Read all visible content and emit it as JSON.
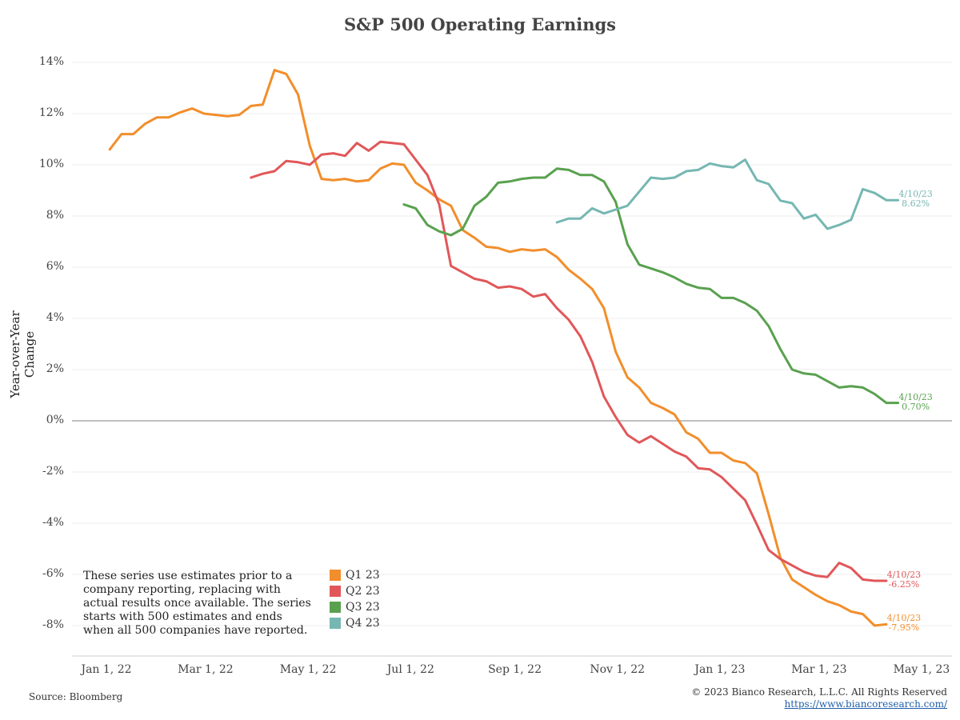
{
  "chart_data": {
    "type": "line",
    "title": "S&P 500 Operating Earnings",
    "ylabel": "Year-over-Year Change",
    "xlabel": "",
    "ylim": [
      -9,
      14.5
    ],
    "xlim": [
      "2021-12-20",
      "2023-05-10"
    ],
    "grid": true,
    "yticks": [
      "14%",
      "12%",
      "10%",
      "8%",
      "6%",
      "4%",
      "2%",
      "0%",
      "-2%",
      "-4%",
      "-6%",
      "-8%"
    ],
    "ytick_values": [
      14,
      12,
      10,
      8,
      6,
      4,
      2,
      0,
      -2,
      -4,
      -6,
      -8
    ],
    "xticks": [
      {
        "date": "2022-01-01",
        "label": "Jan 1, 22"
      },
      {
        "date": "2022-03-01",
        "label": "Mar 1, 22"
      },
      {
        "date": "2022-05-01",
        "label": "May 1, 22"
      },
      {
        "date": "2022-07-01",
        "label": "Jul 1, 22"
      },
      {
        "date": "2022-09-01",
        "label": "Sep 1, 22"
      },
      {
        "date": "2022-11-01",
        "label": "Nov 1, 22"
      },
      {
        "date": "2023-01-01",
        "label": "Jan 1, 23"
      },
      {
        "date": "2023-03-01",
        "label": "Mar 1, 23"
      },
      {
        "date": "2023-05-01",
        "label": "May 1, 23"
      }
    ],
    "legend_position": "bottom-left",
    "series": [
      {
        "name": "Q1 23",
        "color": "#f28e2b",
        "end_label_date": "4/10/23",
        "end_label_value": "-7.95%",
        "points": [
          [
            "2022-01-03",
            10.6
          ],
          [
            "2022-01-10",
            11.2
          ],
          [
            "2022-01-17",
            11.2
          ],
          [
            "2022-01-24",
            11.6
          ],
          [
            "2022-01-31",
            11.85
          ],
          [
            "2022-02-07",
            11.85
          ],
          [
            "2022-02-14",
            12.05
          ],
          [
            "2022-02-21",
            12.2
          ],
          [
            "2022-02-28",
            12.0
          ],
          [
            "2022-03-07",
            11.95
          ],
          [
            "2022-03-14",
            11.9
          ],
          [
            "2022-03-21",
            11.95
          ],
          [
            "2022-03-28",
            12.3
          ],
          [
            "2022-04-04",
            12.35
          ],
          [
            "2022-04-11",
            13.7
          ],
          [
            "2022-04-18",
            13.55
          ],
          [
            "2022-04-25",
            12.75
          ],
          [
            "2022-05-02",
            10.75
          ],
          [
            "2022-05-09",
            9.45
          ],
          [
            "2022-05-16",
            9.4
          ],
          [
            "2022-05-23",
            9.45
          ],
          [
            "2022-05-30",
            9.35
          ],
          [
            "2022-06-06",
            9.4
          ],
          [
            "2022-06-13",
            9.85
          ],
          [
            "2022-06-20",
            10.05
          ],
          [
            "2022-06-27",
            10.0
          ],
          [
            "2022-07-04",
            9.3
          ],
          [
            "2022-07-11",
            9.0
          ],
          [
            "2022-07-18",
            8.65
          ],
          [
            "2022-07-25",
            8.4
          ],
          [
            "2022-08-01",
            7.45
          ],
          [
            "2022-08-08",
            7.15
          ],
          [
            "2022-08-15",
            6.8
          ],
          [
            "2022-08-22",
            6.75
          ],
          [
            "2022-08-29",
            6.6
          ],
          [
            "2022-09-05",
            6.7
          ],
          [
            "2022-09-12",
            6.65
          ],
          [
            "2022-09-19",
            6.7
          ],
          [
            "2022-09-26",
            6.4
          ],
          [
            "2022-10-03",
            5.9
          ],
          [
            "2022-10-10",
            5.55
          ],
          [
            "2022-10-17",
            5.15
          ],
          [
            "2022-10-24",
            4.4
          ],
          [
            "2022-10-31",
            2.7
          ],
          [
            "2022-11-07",
            1.7
          ],
          [
            "2022-11-14",
            1.3
          ],
          [
            "2022-11-21",
            0.7
          ],
          [
            "2022-11-28",
            0.5
          ],
          [
            "2022-12-05",
            0.25
          ],
          [
            "2022-12-12",
            -0.45
          ],
          [
            "2022-12-19",
            -0.7
          ],
          [
            "2022-12-26",
            -1.25
          ],
          [
            "2023-01-02",
            -1.25
          ],
          [
            "2023-01-09",
            -1.55
          ],
          [
            "2023-01-16",
            -1.65
          ],
          [
            "2023-01-23",
            -2.05
          ],
          [
            "2023-01-30",
            -3.65
          ],
          [
            "2023-02-06",
            -5.35
          ],
          [
            "2023-02-13",
            -6.2
          ],
          [
            "2023-02-20",
            -6.5
          ],
          [
            "2023-02-27",
            -6.8
          ],
          [
            "2023-03-06",
            -7.05
          ],
          [
            "2023-03-13",
            -7.2
          ],
          [
            "2023-03-20",
            -7.45
          ],
          [
            "2023-03-27",
            -7.55
          ],
          [
            "2023-04-03",
            -8.0
          ],
          [
            "2023-04-10",
            -7.95
          ]
        ]
      },
      {
        "name": "Q2 23",
        "color": "#e15759",
        "end_label_date": "4/10/23",
        "end_label_value": "-6.25%",
        "points": [
          [
            "2022-03-28",
            9.5
          ],
          [
            "2022-04-04",
            9.65
          ],
          [
            "2022-04-11",
            9.75
          ],
          [
            "2022-04-18",
            10.15
          ],
          [
            "2022-04-25",
            10.1
          ],
          [
            "2022-05-02",
            10.0
          ],
          [
            "2022-05-09",
            10.4
          ],
          [
            "2022-05-16",
            10.45
          ],
          [
            "2022-05-23",
            10.35
          ],
          [
            "2022-05-30",
            10.85
          ],
          [
            "2022-06-06",
            10.55
          ],
          [
            "2022-06-13",
            10.9
          ],
          [
            "2022-06-20",
            10.85
          ],
          [
            "2022-06-27",
            10.8
          ],
          [
            "2022-07-04",
            10.2
          ],
          [
            "2022-07-11",
            9.6
          ],
          [
            "2022-07-18",
            8.45
          ],
          [
            "2022-07-25",
            6.05
          ],
          [
            "2022-08-01",
            5.8
          ],
          [
            "2022-08-08",
            5.55
          ],
          [
            "2022-08-15",
            5.45
          ],
          [
            "2022-08-22",
            5.2
          ],
          [
            "2022-08-29",
            5.25
          ],
          [
            "2022-09-05",
            5.15
          ],
          [
            "2022-09-12",
            4.85
          ],
          [
            "2022-09-19",
            4.95
          ],
          [
            "2022-09-26",
            4.4
          ],
          [
            "2022-10-03",
            3.95
          ],
          [
            "2022-10-10",
            3.3
          ],
          [
            "2022-10-17",
            2.3
          ],
          [
            "2022-10-24",
            0.95
          ],
          [
            "2022-10-31",
            0.15
          ],
          [
            "2022-11-07",
            -0.55
          ],
          [
            "2022-11-14",
            -0.85
          ],
          [
            "2022-11-21",
            -0.6
          ],
          [
            "2022-11-28",
            -0.9
          ],
          [
            "2022-12-05",
            -1.2
          ],
          [
            "2022-12-12",
            -1.4
          ],
          [
            "2022-12-19",
            -1.85
          ],
          [
            "2022-12-26",
            -1.9
          ],
          [
            "2023-01-02",
            -2.2
          ],
          [
            "2023-01-09",
            -2.65
          ],
          [
            "2023-01-16",
            -3.1
          ],
          [
            "2023-01-23",
            -4.05
          ],
          [
            "2023-01-30",
            -5.05
          ],
          [
            "2023-02-06",
            -5.4
          ],
          [
            "2023-02-13",
            -5.65
          ],
          [
            "2023-02-20",
            -5.9
          ],
          [
            "2023-02-27",
            -6.05
          ],
          [
            "2023-03-06",
            -6.1
          ],
          [
            "2023-03-13",
            -5.55
          ],
          [
            "2023-03-20",
            -5.75
          ],
          [
            "2023-03-27",
            -6.2
          ],
          [
            "2023-04-03",
            -6.25
          ],
          [
            "2023-04-10",
            -6.25
          ]
        ]
      },
      {
        "name": "Q3 23",
        "color": "#59a14f",
        "end_label_date": "4/10/23",
        "end_label_value": "0.70%",
        "points": [
          [
            "2022-06-27",
            8.45
          ],
          [
            "2022-07-04",
            8.3
          ],
          [
            "2022-07-11",
            7.65
          ],
          [
            "2022-07-18",
            7.4
          ],
          [
            "2022-07-25",
            7.25
          ],
          [
            "2022-08-01",
            7.5
          ],
          [
            "2022-08-08",
            8.4
          ],
          [
            "2022-08-15",
            8.75
          ],
          [
            "2022-08-22",
            9.3
          ],
          [
            "2022-08-29",
            9.35
          ],
          [
            "2022-09-05",
            9.45
          ],
          [
            "2022-09-12",
            9.5
          ],
          [
            "2022-09-19",
            9.5
          ],
          [
            "2022-09-26",
            9.85
          ],
          [
            "2022-10-03",
            9.8
          ],
          [
            "2022-10-10",
            9.6
          ],
          [
            "2022-10-17",
            9.6
          ],
          [
            "2022-10-24",
            9.35
          ],
          [
            "2022-10-31",
            8.55
          ],
          [
            "2022-11-07",
            6.9
          ],
          [
            "2022-11-14",
            6.1
          ],
          [
            "2022-11-21",
            5.95
          ],
          [
            "2022-11-28",
            5.8
          ],
          [
            "2022-12-05",
            5.6
          ],
          [
            "2022-12-12",
            5.35
          ],
          [
            "2022-12-19",
            5.2
          ],
          [
            "2022-12-26",
            5.15
          ],
          [
            "2023-01-02",
            4.8
          ],
          [
            "2023-01-09",
            4.8
          ],
          [
            "2023-01-16",
            4.6
          ],
          [
            "2023-01-23",
            4.3
          ],
          [
            "2023-01-30",
            3.7
          ],
          [
            "2023-02-06",
            2.8
          ],
          [
            "2023-02-13",
            2.0
          ],
          [
            "2023-02-20",
            1.85
          ],
          [
            "2023-02-27",
            1.8
          ],
          [
            "2023-03-06",
            1.55
          ],
          [
            "2023-03-13",
            1.3
          ],
          [
            "2023-03-20",
            1.35
          ],
          [
            "2023-03-27",
            1.3
          ],
          [
            "2023-04-03",
            1.05
          ],
          [
            "2023-04-10",
            0.7
          ],
          [
            "2023-04-17",
            0.7
          ]
        ]
      },
      {
        "name": "Q4 23",
        "color": "#76b7b2",
        "end_label_date": "4/10/23",
        "end_label_value": "8.62%",
        "points": [
          [
            "2022-09-26",
            7.75
          ],
          [
            "2022-10-03",
            7.9
          ],
          [
            "2022-10-10",
            7.9
          ],
          [
            "2022-10-17",
            8.3
          ],
          [
            "2022-10-24",
            8.1
          ],
          [
            "2022-10-31",
            8.25
          ],
          [
            "2022-11-07",
            8.4
          ],
          [
            "2022-11-14",
            8.95
          ],
          [
            "2022-11-21",
            9.5
          ],
          [
            "2022-11-28",
            9.45
          ],
          [
            "2022-12-05",
            9.5
          ],
          [
            "2022-12-12",
            9.75
          ],
          [
            "2022-12-19",
            9.8
          ],
          [
            "2022-12-26",
            10.05
          ],
          [
            "2023-01-02",
            9.95
          ],
          [
            "2023-01-09",
            9.9
          ],
          [
            "2023-01-16",
            10.2
          ],
          [
            "2023-01-23",
            9.4
          ],
          [
            "2023-01-30",
            9.25
          ],
          [
            "2023-02-06",
            8.6
          ],
          [
            "2023-02-13",
            8.5
          ],
          [
            "2023-02-20",
            7.9
          ],
          [
            "2023-02-27",
            8.05
          ],
          [
            "2023-03-06",
            7.5
          ],
          [
            "2023-03-13",
            7.65
          ],
          [
            "2023-03-20",
            7.85
          ],
          [
            "2023-03-27",
            9.05
          ],
          [
            "2023-04-03",
            8.9
          ],
          [
            "2023-04-10",
            8.62
          ],
          [
            "2023-04-17",
            8.62
          ]
        ]
      }
    ],
    "annotation": "These series use estimates prior to a company reporting, replacing with actual results once available. The series starts with 500 estimates and ends when all 500 companies have reported."
  },
  "footer": {
    "source": "Source: Bloomberg",
    "copyright": "© 2023 Bianco Research, L.L.C. All Rights Reserved",
    "url": "https://www.biancoresearch.com/"
  }
}
